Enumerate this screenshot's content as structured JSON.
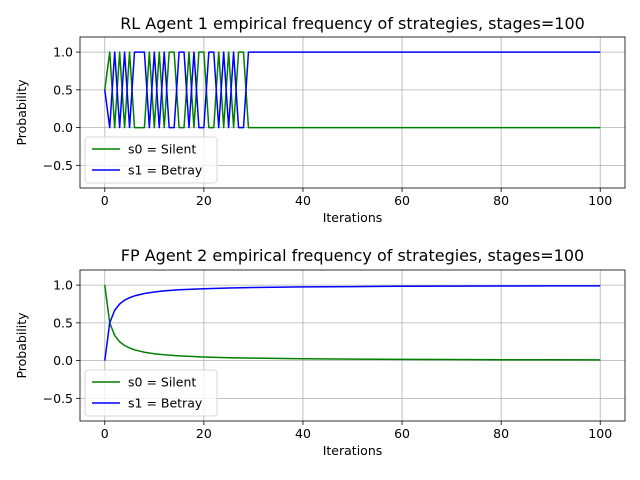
{
  "chart_data": [
    {
      "type": "line",
      "title": "RL Agent 1 empirical frequency of strategies, stages=100",
      "xlabel": "Iterations",
      "ylabel": "Probability",
      "xlim": [
        -5,
        105
      ],
      "ylim": [
        -0.8,
        1.2
      ],
      "xticks": [
        0,
        20,
        40,
        60,
        80,
        100
      ],
      "yticks": [
        -0.5,
        0.0,
        0.5,
        1.0
      ],
      "xtick_labels": [
        "0",
        "20",
        "40",
        "60",
        "80",
        "100"
      ],
      "ytick_labels": [
        "−0.5",
        "0.0",
        "0.5",
        "1.0"
      ],
      "grid": true,
      "legend_position": "lower-left",
      "series": [
        {
          "name": "s0 = Silent",
          "color": "#008000",
          "x": [
            0,
            1,
            2,
            3,
            4,
            5,
            6,
            7,
            8,
            9,
            10,
            11,
            12,
            13,
            14,
            15,
            16,
            17,
            18,
            19,
            20,
            21,
            22,
            23,
            24,
            25,
            26,
            27,
            28,
            29,
            30,
            31,
            100
          ],
          "y": [
            0.5,
            1,
            0,
            1,
            0,
            1,
            0,
            0,
            0,
            1,
            0,
            1,
            0,
            1,
            1,
            0,
            0,
            1,
            0,
            1,
            1,
            0,
            0,
            1,
            0,
            1,
            0,
            1,
            1,
            0,
            0,
            0,
            0
          ]
        },
        {
          "name": "s1 = Betray",
          "color": "#0000ff",
          "x": [
            0,
            1,
            2,
            3,
            4,
            5,
            6,
            7,
            8,
            9,
            10,
            11,
            12,
            13,
            14,
            15,
            16,
            17,
            18,
            19,
            20,
            21,
            22,
            23,
            24,
            25,
            26,
            27,
            28,
            29,
            30,
            31,
            100
          ],
          "y": [
            0.5,
            0,
            1,
            0,
            1,
            0,
            1,
            1,
            1,
            0,
            1,
            0,
            1,
            0,
            0,
            1,
            1,
            0,
            1,
            0,
            0,
            1,
            1,
            0,
            1,
            0,
            1,
            0,
            0,
            1,
            1,
            1,
            1
          ]
        }
      ]
    },
    {
      "type": "line",
      "title": "FP Agent 2 empirical frequency of strategies, stages=100",
      "xlabel": "Iterations",
      "ylabel": "Probability",
      "xlim": [
        -5,
        105
      ],
      "ylim": [
        -0.8,
        1.2
      ],
      "xticks": [
        0,
        20,
        40,
        60,
        80,
        100
      ],
      "yticks": [
        -0.5,
        0.0,
        0.5,
        1.0
      ],
      "xtick_labels": [
        "0",
        "20",
        "40",
        "60",
        "80",
        "100"
      ],
      "ytick_labels": [
        "−0.5",
        "0.0",
        "0.5",
        "1.0"
      ],
      "grid": true,
      "legend_position": "lower-left",
      "series": [
        {
          "name": "s0 = Silent",
          "color": "#008000",
          "x": [
            0,
            1,
            2,
            3,
            4,
            5,
            6,
            8,
            10,
            12,
            15,
            20,
            25,
            30,
            40,
            50,
            60,
            70,
            80,
            90,
            100
          ],
          "y": [
            1.0,
            0.5,
            0.333,
            0.25,
            0.2,
            0.167,
            0.143,
            0.111,
            0.091,
            0.077,
            0.063,
            0.048,
            0.038,
            0.032,
            0.024,
            0.02,
            0.016,
            0.014,
            0.012,
            0.011,
            0.01
          ]
        },
        {
          "name": "s1 = Betray",
          "color": "#0000ff",
          "x": [
            0,
            1,
            2,
            3,
            4,
            5,
            6,
            8,
            10,
            12,
            15,
            20,
            25,
            30,
            40,
            50,
            60,
            70,
            80,
            90,
            100
          ],
          "y": [
            0.0,
            0.5,
            0.667,
            0.75,
            0.8,
            0.833,
            0.857,
            0.889,
            0.909,
            0.923,
            0.938,
            0.952,
            0.962,
            0.968,
            0.976,
            0.98,
            0.984,
            0.986,
            0.988,
            0.989,
            0.99
          ]
        }
      ]
    }
  ]
}
